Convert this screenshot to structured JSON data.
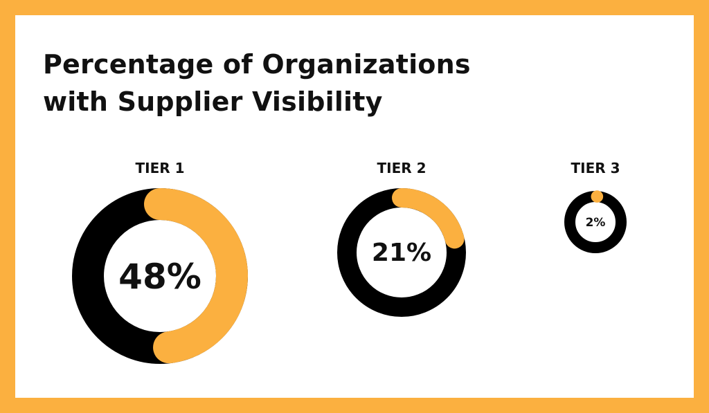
{
  "title_line1": "Percentage of Organizations",
  "title_line2": "with Supplier Visibility",
  "colors": {
    "frame": "#fbb040",
    "ring": "#000000",
    "fill": "#fbb040",
    "card": "#ffffff"
  },
  "chart_data": {
    "type": "pie",
    "title": "Percentage of Organizations with Supplier Visibility",
    "categories": [
      "TIER 1",
      "TIER 2",
      "TIER 3"
    ],
    "values": [
      48,
      21,
      2
    ],
    "value_labels": [
      "48%",
      "21%",
      "2%"
    ],
    "unit": "%"
  }
}
